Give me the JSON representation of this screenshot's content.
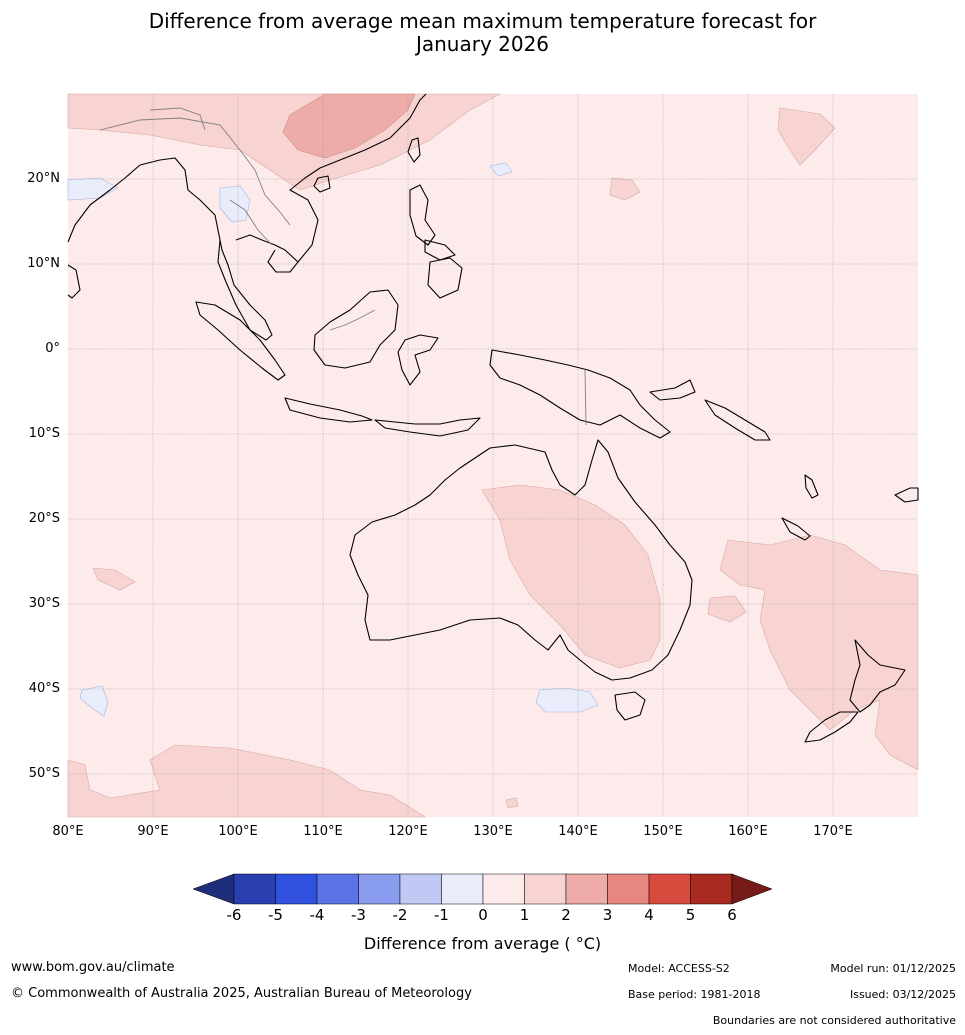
{
  "title": {
    "line1": "Difference from average mean maximum temperature forecast for",
    "line2": "January 2026"
  },
  "map": {
    "projection": "plate-carree",
    "lon_range": [
      80,
      180
    ],
    "lat_range": [
      -55,
      30
    ],
    "lat_labels": [
      "20°N",
      "10°N",
      "0°",
      "10°S",
      "20°S",
      "30°S",
      "40°S",
      "50°S"
    ],
    "lon_labels": [
      "80°E",
      "90°E",
      "100°E",
      "110°E",
      "120°E",
      "130°E",
      "140°E",
      "150°E",
      "160°E",
      "170°E"
    ],
    "dominant_category": "0 to 1",
    "anomaly_regions": [
      "eastern Australia 1 to 2",
      "southern China 2 to 3",
      "Tasman Sea 1 to 2",
      "Southern Ocean 1 to 2",
      "Great Australian Bight -1 to 0"
    ]
  },
  "colorbar": {
    "title": "Difference from average ( °C)",
    "ticks": [
      "-6",
      "-5",
      "-4",
      "-3",
      "-2",
      "-1",
      "0",
      "1",
      "2",
      "3",
      "4",
      "5",
      "6"
    ],
    "colors": {
      "below_min": "#1f2e7a",
      "m6_m5": "#2a3fb0",
      "m5_m4": "#3050e0",
      "m4_m3": "#5a74e6",
      "m3_m2": "#8a9cee",
      "m2_m1": "#c0c8f4",
      "m1_0": "#e8ecfb",
      "0_1": "#fcebea",
      "1_2": "#f7d4d2",
      "2_3": "#eeaca8",
      "3_4": "#e68780",
      "4_5": "#d94a3e",
      "5_6": "#a92a20",
      "above_max": "#751a16"
    }
  },
  "footer": {
    "website": "www.bom.gov.au/climate",
    "copyright": "© Commonwealth of Australia 2025, Australian Bureau of Meteorology",
    "model": "Model: ACCESS-S2",
    "base_period": "Base period: 1981-2018",
    "model_run": "Model run: 01/12/2025",
    "issued": "Issued: 03/12/2025",
    "disclaimer": "Boundaries are not considered authoritative"
  }
}
